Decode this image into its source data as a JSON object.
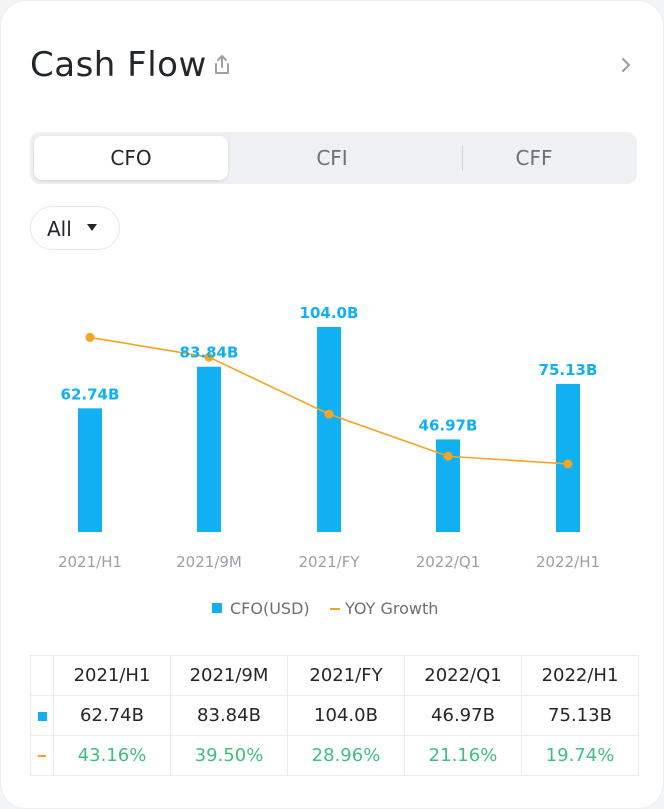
{
  "header": {
    "title": "Cash Flow"
  },
  "tabs": [
    "CFO",
    "CFI",
    "CFF"
  ],
  "filter": {
    "selected": "All"
  },
  "legend": {
    "bar_label": "CFO(USD)",
    "line_label": "YOY Growth"
  },
  "colors": {
    "bar": "#10b0f2",
    "line": "#f5a423",
    "growth_text": "#3fbf7f"
  },
  "chart_data": {
    "type": "bar",
    "categories": [
      "2021/H1",
      "2021/9M",
      "2021/FY",
      "2022/Q1",
      "2022/H1"
    ],
    "series": [
      {
        "name": "CFO(USD)",
        "type": "bar",
        "values": [
          62.74,
          83.84,
          104.0,
          46.97,
          75.13
        ],
        "labels": [
          "62.74B",
          "83.84B",
          "104.0B",
          "46.97B",
          "75.13B"
        ]
      },
      {
        "name": "YOY Growth",
        "type": "line",
        "values": [
          43.16,
          39.5,
          28.96,
          21.16,
          19.74
        ]
      }
    ]
  },
  "table": {
    "headers": [
      "2021/H1",
      "2021/9M",
      "2021/FY",
      "2022/Q1",
      "2022/H1"
    ],
    "cfo_row": [
      "62.74B",
      "83.84B",
      "104.0B",
      "46.97B",
      "75.13B"
    ],
    "growth_row": [
      "43.16%",
      "39.50%",
      "28.96%",
      "21.16%",
      "19.74%"
    ]
  }
}
